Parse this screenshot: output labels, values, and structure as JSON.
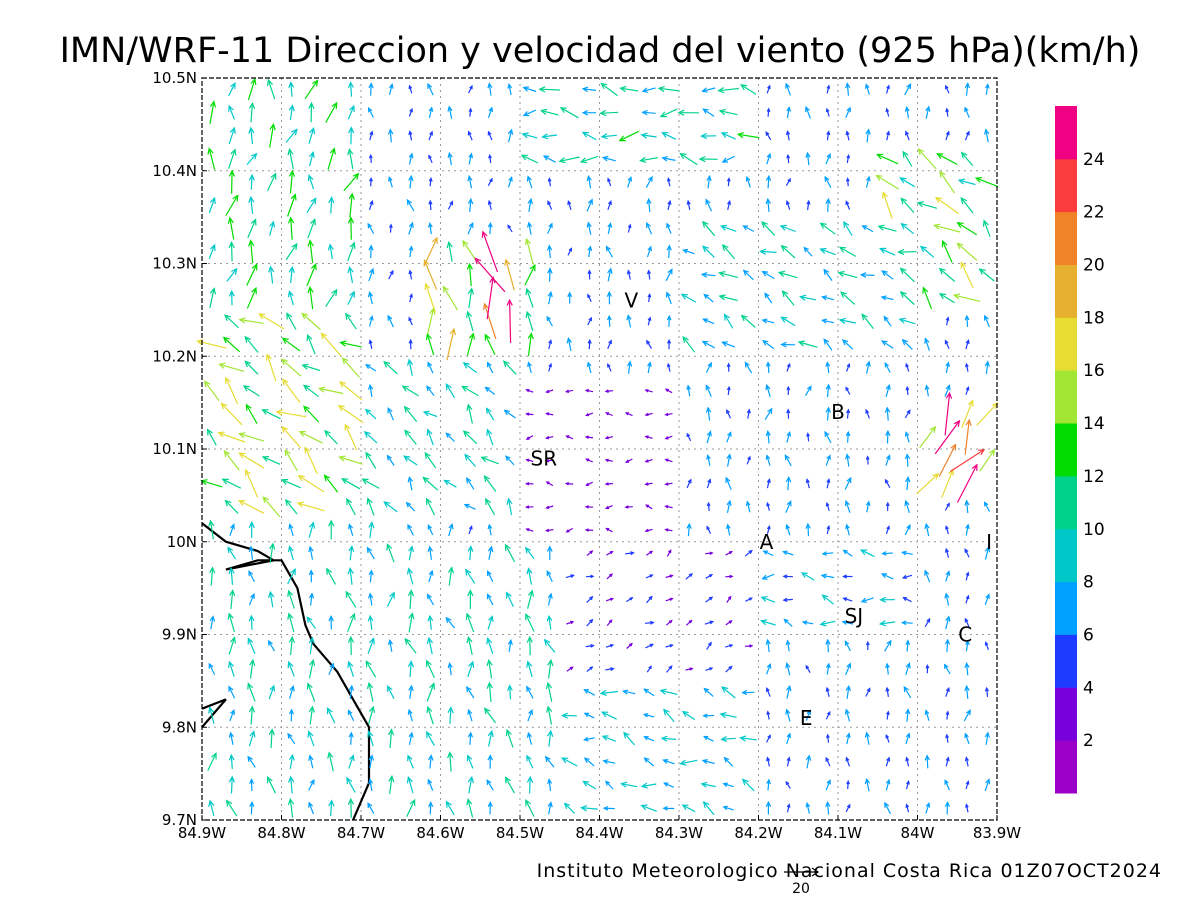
{
  "title": "IMN/WRF-11 Direccion y velocidad del viento (925 hPa)(km/h)",
  "footer": "Instituto Meteorologico Nacional Costa Rica 01Z07OCT2024",
  "reference_vector": {
    "label": "20",
    "speed_kmh": 20
  },
  "map": {
    "lon_range": [
      -84.9,
      -83.9
    ],
    "lat_range": [
      9.7,
      10.5
    ],
    "lon_ticks": [
      {
        "value": -84.9,
        "label": "84.9W"
      },
      {
        "value": -84.8,
        "label": "84.8W"
      },
      {
        "value": -84.7,
        "label": "84.7W"
      },
      {
        "value": -84.6,
        "label": "84.6W"
      },
      {
        "value": -84.5,
        "label": "84.5W"
      },
      {
        "value": -84.4,
        "label": "84.4W"
      },
      {
        "value": -84.3,
        "label": "84.3W"
      },
      {
        "value": -84.2,
        "label": "84.2W"
      },
      {
        "value": -84.1,
        "label": "84.1W"
      },
      {
        "value": -84.0,
        "label": "84W"
      },
      {
        "value": -83.9,
        "label": "83.9W"
      }
    ],
    "lat_ticks": [
      {
        "value": 9.7,
        "label": "9.7N"
      },
      {
        "value": 9.8,
        "label": "9.8N"
      },
      {
        "value": 9.9,
        "label": "9.9N"
      },
      {
        "value": 10.0,
        "label": "10N"
      },
      {
        "value": 10.1,
        "label": "10.1N"
      },
      {
        "value": 10.2,
        "label": "10.2N"
      },
      {
        "value": 10.3,
        "label": "10.3N"
      },
      {
        "value": 10.4,
        "label": "10.4N"
      },
      {
        "value": 10.5,
        "label": "10.5N"
      }
    ],
    "grid": "dotted",
    "place_labels": [
      {
        "label": "V",
        "lon": -84.36,
        "lat": 10.26
      },
      {
        "label": "B",
        "lon": -84.1,
        "lat": 10.14
      },
      {
        "label": "SR",
        "lon": -84.47,
        "lat": 10.09
      },
      {
        "label": "A",
        "lon": -84.19,
        "lat": 10.0
      },
      {
        "label": "I",
        "lon": -83.91,
        "lat": 10.0
      },
      {
        "label": "SJ",
        "lon": -84.08,
        "lat": 9.92
      },
      {
        "label": "C",
        "lon": -83.94,
        "lat": 9.9
      },
      {
        "label": "E",
        "lon": -84.14,
        "lat": 9.81
      }
    ],
    "coastline_segments": [
      [
        [
          -84.9,
          10.02
        ],
        [
          -84.87,
          10.0
        ],
        [
          -84.83,
          9.99
        ],
        [
          -84.81,
          9.98
        ],
        [
          -84.87,
          9.97
        ],
        [
          -84.83,
          9.98
        ],
        [
          -84.8,
          9.98
        ],
        [
          -84.78,
          9.95
        ],
        [
          -84.77,
          9.91
        ],
        [
          -84.76,
          9.89
        ],
        [
          -84.73,
          9.86
        ],
        [
          -84.71,
          9.83
        ],
        [
          -84.69,
          9.8
        ],
        [
          -84.69,
          9.74
        ],
        [
          -84.71,
          9.7
        ]
      ],
      [
        [
          -84.9,
          9.82
        ],
        [
          -84.87,
          9.83
        ],
        [
          -84.9,
          9.8
        ]
      ]
    ]
  },
  "colorbar": {
    "colors": [
      "#9b00c8",
      "#7800dc",
      "#1e3cff",
      "#00a0ff",
      "#00c8c8",
      "#00d28c",
      "#00dc00",
      "#a0e632",
      "#e6dc32",
      "#e6af2d",
      "#f08228",
      "#fa3c3c",
      "#f00082"
    ],
    "tick_labels": [
      "2",
      "4",
      "6",
      "8",
      "10",
      "12",
      "14",
      "16",
      "18",
      "20",
      "22",
      "24"
    ]
  },
  "wind_field": {
    "units": "km/h",
    "regions": [
      {
        "lon": [
          -84.9,
          -84.62
        ],
        "lat": [
          9.7,
          10.02
        ],
        "dir": 95,
        "speed": 9
      },
      {
        "lon": [
          -84.9,
          -84.7
        ],
        "lat": [
          10.02,
          10.26
        ],
        "dir": 140,
        "speed": 14
      },
      {
        "lon": [
          -84.9,
          -84.7
        ],
        "lat": [
          10.26,
          10.5
        ],
        "dir": 80,
        "speed": 11
      },
      {
        "lon": [
          -84.7,
          -84.5
        ],
        "lat": [
          10.02,
          10.2
        ],
        "dir": 130,
        "speed": 9
      },
      {
        "lon": [
          -84.62,
          -84.48
        ],
        "lat": [
          10.2,
          10.33
        ],
        "dir": 95,
        "speed": 15
      },
      {
        "lon": [
          -84.55,
          -84.5
        ],
        "lat": [
          10.22,
          10.32
        ],
        "dir": 110,
        "speed": 21
      },
      {
        "lon": [
          -84.5,
          -84.2
        ],
        "lat": [
          10.4,
          10.5
        ],
        "dir": 175,
        "speed": 10
      },
      {
        "lon": [
          -84.5,
          -84.3
        ],
        "lat": [
          10.0,
          10.18
        ],
        "dir": 180,
        "speed": 3
      },
      {
        "lon": [
          -84.62,
          -84.45
        ],
        "lat": [
          9.7,
          10.0
        ],
        "dir": 100,
        "speed": 9
      },
      {
        "lon": [
          -84.45,
          -84.2
        ],
        "lat": [
          9.85,
          10.0
        ],
        "dir": 30,
        "speed": 4
      },
      {
        "lon": [
          -84.2,
          -84.0
        ],
        "lat": [
          9.9,
          10.0
        ],
        "dir": 170,
        "speed": 7
      },
      {
        "lon": [
          -84.0,
          -83.9
        ],
        "lat": [
          10.05,
          10.15
        ],
        "dir": 60,
        "speed": 20
      },
      {
        "lon": [
          -84.05,
          -83.9
        ],
        "lat": [
          10.25,
          10.42
        ],
        "dir": 140,
        "speed": 13
      },
      {
        "lon": [
          -84.3,
          -84.0
        ],
        "lat": [
          10.2,
          10.35
        ],
        "dir": 150,
        "speed": 9
      },
      {
        "lon": [
          -84.45,
          -84.2
        ],
        "lat": [
          9.7,
          9.85
        ],
        "dir": 160,
        "speed": 8
      }
    ],
    "default": {
      "dir": 90,
      "speed": 6
    }
  }
}
